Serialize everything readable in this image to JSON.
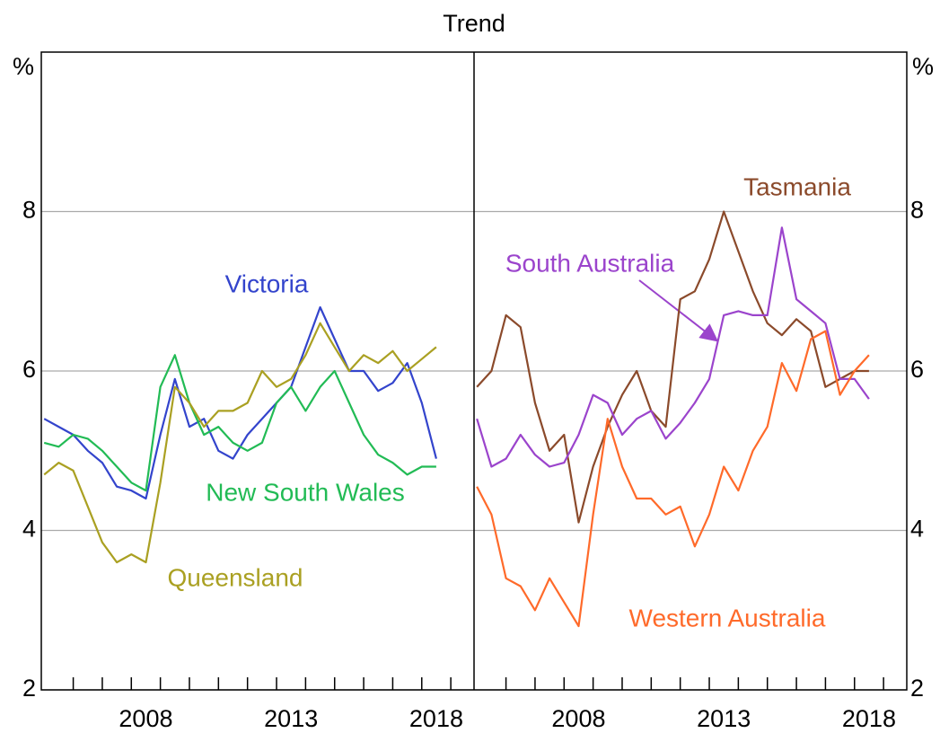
{
  "subtitle": "Trend",
  "chart_data": [
    {
      "type": "line",
      "y_unit": "%",
      "x": [
        2004.5,
        2005,
        2005.5,
        2006,
        2006.5,
        2007,
        2007.5,
        2008,
        2008.5,
        2009,
        2009.5,
        2010,
        2010.5,
        2011,
        2011.5,
        2012,
        2012.5,
        2013,
        2013.5,
        2014,
        2014.5,
        2015,
        2015.5,
        2016,
        2016.5,
        2017,
        2017.5,
        2018
      ],
      "xlim": [
        2004.4,
        2019.3
      ],
      "xticks": [
        2008,
        2013,
        2018
      ],
      "xminor_ticks": [
        2005.5,
        2006.5,
        2007.5,
        2008.5,
        2009.5,
        2010.5,
        2011.5,
        2012.5,
        2013.5,
        2014.5,
        2015.5,
        2016.5,
        2017.5,
        2018.5
      ],
      "ylim": [
        2,
        10
      ],
      "yticks": [
        2,
        4,
        6,
        8
      ],
      "grid": true,
      "series": [
        {
          "name": "Victoria",
          "color": "#3344cc",
          "values": [
            5.4,
            5.3,
            5.2,
            5.0,
            4.85,
            4.55,
            4.5,
            4.4,
            5.2,
            5.9,
            5.3,
            5.4,
            5.0,
            4.9,
            5.2,
            5.4,
            5.6,
            5.8,
            6.3,
            6.8,
            6.4,
            6.0,
            6.0,
            5.75,
            5.85,
            6.1,
            5.6,
            4.9
          ]
        },
        {
          "name": "New South Wales",
          "color": "#22bb55",
          "values": [
            5.1,
            5.05,
            5.2,
            5.15,
            5.0,
            4.8,
            4.6,
            4.5,
            5.8,
            6.2,
            5.6,
            5.2,
            5.3,
            5.1,
            5.0,
            5.1,
            5.6,
            5.8,
            5.5,
            5.8,
            6.0,
            5.6,
            5.2,
            4.95,
            4.85,
            4.7,
            4.8,
            4.8
          ]
        },
        {
          "name": "Queensland",
          "color": "#aaa022",
          "values": [
            4.7,
            4.85,
            4.75,
            4.3,
            3.85,
            3.6,
            3.7,
            3.6,
            4.6,
            5.8,
            5.6,
            5.3,
            5.5,
            5.5,
            5.6,
            6.0,
            5.8,
            5.9,
            6.2,
            6.6,
            6.3,
            6.0,
            6.2,
            6.1,
            6.25,
            6.0,
            6.15,
            6.3
          ]
        }
      ]
    },
    {
      "type": "line",
      "y_unit": "%",
      "x": [
        2004.5,
        2005,
        2005.5,
        2006,
        2006.5,
        2007,
        2007.5,
        2008,
        2008.5,
        2009,
        2009.5,
        2010,
        2010.5,
        2011,
        2011.5,
        2012,
        2012.5,
        2013,
        2013.5,
        2014,
        2014.5,
        2015,
        2015.5,
        2016,
        2016.5,
        2017,
        2017.5,
        2018
      ],
      "xlim": [
        2004.4,
        2019.3
      ],
      "xticks": [
        2008,
        2013,
        2018
      ],
      "xminor_ticks": [
        2005.5,
        2006.5,
        2007.5,
        2008.5,
        2009.5,
        2010.5,
        2011.5,
        2012.5,
        2013.5,
        2014.5,
        2015.5,
        2016.5,
        2017.5,
        2018.5
      ],
      "ylim": [
        2,
        10
      ],
      "yticks": [
        2,
        4,
        6,
        8
      ],
      "grid": true,
      "series": [
        {
          "name": "Tasmania",
          "color": "#8b4a2b",
          "values": [
            5.8,
            6.0,
            6.7,
            6.55,
            5.6,
            5.0,
            5.2,
            4.1,
            4.8,
            5.3,
            5.7,
            6.0,
            5.5,
            5.3,
            6.9,
            7.0,
            7.4,
            8.0,
            7.5,
            7.0,
            6.6,
            6.45,
            6.65,
            6.5,
            5.8,
            5.9,
            6.0,
            6.0
          ]
        },
        {
          "name": "South Australia",
          "color": "#9b44cc",
          "values": [
            5.4,
            4.8,
            4.9,
            5.2,
            4.95,
            4.8,
            4.85,
            5.2,
            5.7,
            5.6,
            5.2,
            5.4,
            5.5,
            5.15,
            5.35,
            5.6,
            5.9,
            6.7,
            6.75,
            6.7,
            6.7,
            7.8,
            6.9,
            6.75,
            6.6,
            5.9,
            5.9,
            5.65
          ]
        },
        {
          "name": "Western Australia",
          "color": "#ff6a2a",
          "values": [
            4.55,
            4.2,
            3.4,
            3.3,
            3.0,
            3.4,
            3.1,
            2.8,
            4.2,
            5.4,
            4.8,
            4.4,
            4.4,
            4.2,
            4.3,
            3.8,
            4.2,
            4.8,
            4.5,
            5.0,
            5.3,
            6.1,
            5.75,
            6.4,
            6.5,
            5.7,
            6.0,
            6.2
          ]
        }
      ]
    }
  ]
}
